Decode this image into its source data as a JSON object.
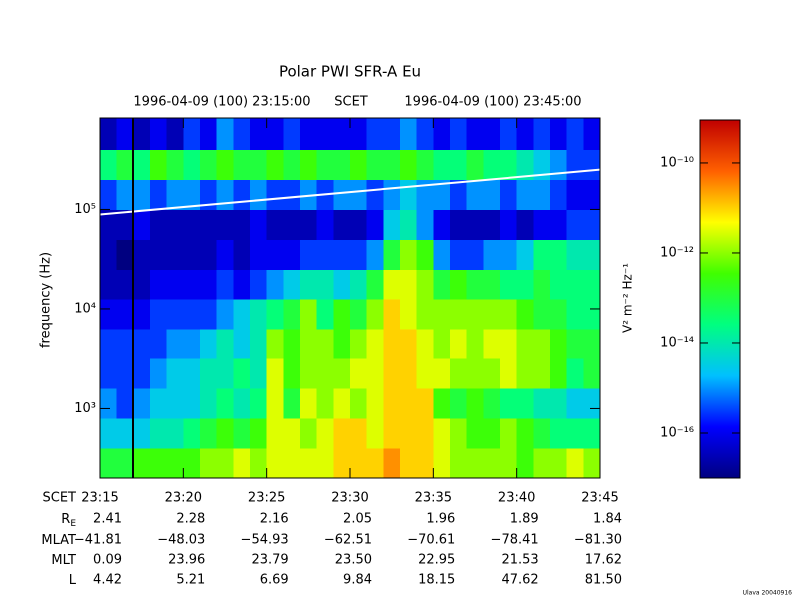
{
  "chart_data": {
    "type": "spectrogram",
    "title": "Polar PWI SFR-A Eu",
    "start_label": "1996-04-09 (100) 23:15:00",
    "center_label": "SCET",
    "end_label": "1996-04-09 (100) 23:45:00",
    "ylabel": "frequency (Hz)",
    "clabel": "V² m⁻² Hz⁻¹",
    "footer": "Ulava 20040916",
    "xlim": [
      "23:15",
      "23:45"
    ],
    "xticks": [
      "23:15",
      "23:20",
      "23:25",
      "23:30",
      "23:35",
      "23:40",
      "23:45"
    ],
    "xlabel": "SCET",
    "ylim": [
      200,
      830000
    ],
    "ylog": true,
    "yticks": [
      {
        "value": 1000,
        "label": "10³"
      },
      {
        "value": 10000,
        "label": "10⁴"
      },
      {
        "value": 100000,
        "label": "10⁵"
      }
    ],
    "clim": [
      1e-17,
      9e-10
    ],
    "clog": true,
    "cticks": [
      {
        "value": 1e-10,
        "label": "10⁻¹⁰"
      },
      {
        "value": 1e-12,
        "label": "10⁻¹²"
      },
      {
        "value": 1e-14,
        "label": "10⁻¹⁴"
      },
      {
        "value": 1e-16,
        "label": "10⁻¹⁶"
      }
    ],
    "colormap": [
      "#000080",
      "#0000ff",
      "#00c0ff",
      "#00ff80",
      "#40ff00",
      "#ffff00",
      "#ff6000",
      "#c00000"
    ],
    "x": [
      "23:15",
      "23:16",
      "23:17",
      "23:18",
      "23:19",
      "23:20",
      "23:21",
      "23:22",
      "23:23",
      "23:24",
      "23:25",
      "23:26",
      "23:27",
      "23:28",
      "23:29",
      "23:30",
      "23:31",
      "23:32",
      "23:33",
      "23:34",
      "23:35",
      "23:36",
      "23:37",
      "23:38",
      "23:39",
      "23:40",
      "23:41",
      "23:42",
      "23:43",
      "23:44"
    ],
    "ybins": [
      200,
      400,
      800,
      1600,
      3200,
      6300,
      12600,
      25000,
      50000,
      100000,
      200000,
      400000,
      830000
    ],
    "z": [
      [
        1e-13,
        1e-13,
        3e-13,
        3e-13,
        3e-13,
        3e-13,
        1e-12,
        1e-12,
        3e-12,
        1e-12,
        3e-12,
        3e-12,
        3e-12,
        3e-12,
        1e-11,
        1e-11,
        1e-11,
        3e-11,
        1e-11,
        1e-11,
        3e-12,
        1e-12,
        1e-12,
        1e-12,
        1e-12,
        3e-13,
        1e-12,
        1e-12,
        3e-12,
        1e-12
      ],
      [
        3e-15,
        3e-15,
        3e-15,
        1e-14,
        1e-14,
        3e-14,
        1e-13,
        3e-13,
        1e-13,
        3e-13,
        3e-12,
        3e-12,
        1e-12,
        3e-12,
        1e-11,
        1e-11,
        3e-12,
        1e-11,
        1e-11,
        1e-11,
        3e-12,
        1e-12,
        3e-13,
        3e-13,
        1e-12,
        3e-13,
        1e-13,
        3e-14,
        3e-14,
        3e-14
      ],
      [
        1e-15,
        3e-16,
        1e-15,
        3e-15,
        3e-15,
        3e-15,
        1e-14,
        3e-14,
        1e-14,
        3e-14,
        3e-12,
        1e-13,
        3e-12,
        1e-12,
        3e-12,
        1e-12,
        3e-12,
        1e-11,
        1e-11,
        1e-11,
        3e-13,
        1e-13,
        3e-13,
        1e-13,
        3e-14,
        3e-14,
        1e-14,
        1e-14,
        3e-15,
        3e-15
      ],
      [
        3e-16,
        3e-16,
        3e-16,
        1e-15,
        3e-15,
        3e-15,
        1e-14,
        1e-14,
        3e-14,
        1e-14,
        3e-12,
        3e-13,
        1e-12,
        1e-12,
        1e-12,
        3e-12,
        3e-12,
        1e-11,
        1e-11,
        3e-12,
        3e-12,
        1e-12,
        1e-12,
        1e-12,
        3e-12,
        1e-12,
        1e-12,
        3e-13,
        3e-14,
        1e-13
      ],
      [
        3e-16,
        3e-16,
        3e-16,
        3e-16,
        1e-15,
        1e-15,
        3e-15,
        1e-14,
        3e-15,
        1e-14,
        1e-12,
        3e-13,
        1e-12,
        1e-12,
        3e-13,
        1e-12,
        3e-12,
        1e-11,
        1e-11,
        3e-12,
        1e-12,
        3e-12,
        1e-12,
        3e-12,
        3e-12,
        1e-12,
        1e-12,
        3e-13,
        1e-13,
        1e-13
      ],
      [
        1e-16,
        1e-16,
        1e-16,
        3e-16,
        3e-16,
        3e-16,
        3e-16,
        1e-15,
        3e-15,
        1e-14,
        3e-14,
        1e-13,
        1e-12,
        3e-14,
        3e-13,
        1e-13,
        1e-12,
        1e-11,
        3e-12,
        1e-12,
        1e-12,
        1e-12,
        1e-12,
        1e-12,
        1e-12,
        3e-13,
        1e-13,
        1e-13,
        3e-14,
        3e-14
      ],
      [
        3e-17,
        3e-17,
        3e-17,
        1e-16,
        1e-16,
        1e-16,
        1e-16,
        3e-16,
        1e-16,
        3e-16,
        1e-15,
        3e-15,
        1e-14,
        1e-14,
        3e-15,
        1e-14,
        1e-13,
        3e-12,
        3e-12,
        1e-12,
        1e-13,
        3e-13,
        1e-13,
        1e-13,
        3e-14,
        3e-14,
        1e-13,
        3e-14,
        3e-14,
        3e-14
      ],
      [
        3e-17,
        1e-17,
        3e-17,
        3e-17,
        3e-17,
        3e-17,
        3e-17,
        1e-16,
        3e-17,
        1e-16,
        1e-16,
        1e-16,
        3e-16,
        3e-16,
        3e-16,
        3e-16,
        1e-15,
        1e-13,
        1e-12,
        3e-13,
        1e-15,
        3e-16,
        3e-16,
        1e-15,
        1e-15,
        3e-15,
        3e-14,
        3e-14,
        1e-14,
        1e-14
      ],
      [
        3e-17,
        3e-17,
        1e-16,
        3e-17,
        3e-17,
        3e-17,
        3e-17,
        3e-17,
        3e-17,
        1e-16,
        3e-17,
        3e-17,
        3e-17,
        1e-16,
        3e-17,
        3e-17,
        1e-16,
        3e-15,
        1e-14,
        1e-15,
        1e-16,
        3e-17,
        3e-17,
        3e-17,
        1e-16,
        3e-17,
        1e-16,
        1e-16,
        3e-16,
        3e-16
      ],
      [
        3e-16,
        1e-15,
        1e-15,
        3e-16,
        1e-15,
        1e-15,
        3e-16,
        1e-15,
        3e-16,
        1e-15,
        3e-16,
        3e-16,
        1e-15,
        3e-16,
        1e-15,
        1e-15,
        3e-16,
        1e-15,
        3e-15,
        1e-15,
        1e-15,
        3e-16,
        1e-15,
        1e-15,
        3e-16,
        1e-15,
        1e-15,
        3e-16,
        1e-16,
        1e-16
      ],
      [
        3e-14,
        1e-13,
        3e-14,
        3e-13,
        1e-13,
        3e-14,
        1e-13,
        3e-13,
        1e-13,
        1e-13,
        3e-13,
        1e-13,
        3e-13,
        1e-13,
        1e-13,
        3e-13,
        1e-13,
        1e-13,
        3e-13,
        1e-13,
        3e-14,
        3e-14,
        1e-13,
        3e-14,
        3e-14,
        1e-14,
        3e-15,
        1e-15,
        3e-16,
        3e-16
      ],
      [
        3e-17,
        1e-16,
        3e-17,
        1e-16,
        3e-17,
        3e-16,
        1e-16,
        1e-15,
        3e-16,
        1e-16,
        1e-16,
        3e-16,
        1e-16,
        1e-16,
        1e-16,
        1e-16,
        3e-16,
        3e-16,
        1e-15,
        3e-16,
        1e-16,
        3e-16,
        1e-16,
        1e-16,
        3e-16,
        1e-16,
        3e-16,
        1e-16,
        3e-16,
        1e-16
      ]
    ],
    "lines": [
      {
        "color": "#ffffff",
        "x": [
          "23:15",
          "23:45"
        ],
        "values": [
          89000,
          251000
        ]
      }
    ],
    "ephemeris": [
      {
        "label": "R",
        "sub": "E",
        "values": [
          "2.41",
          "2.28",
          "2.16",
          "2.05",
          "1.96",
          "1.89",
          "1.84"
        ]
      },
      {
        "label": "MLAT",
        "values": [
          "−41.81",
          "−48.03",
          "−54.93",
          "−62.51",
          "−70.61",
          "−78.41",
          "−81.30"
        ]
      },
      {
        "label": "MLT",
        "values": [
          "0.09",
          "23.96",
          "23.79",
          "23.50",
          "22.95",
          "21.53",
          "17.62"
        ]
      },
      {
        "label": "L",
        "values": [
          "4.42",
          "5.21",
          "6.69",
          "9.84",
          "18.15",
          "47.62",
          "81.50"
        ]
      }
    ]
  }
}
